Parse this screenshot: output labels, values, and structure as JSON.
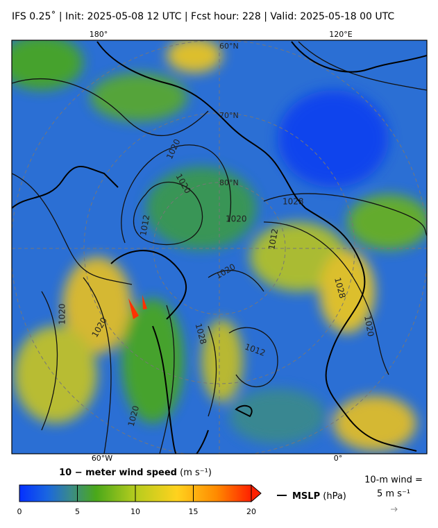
{
  "header": {
    "title": "IFS 0.25˚  |  Init: 2025-05-08 12 UTC  |  Fcst hour: 228  |  Valid: 2025-05-18 00 UTC"
  },
  "map": {
    "lon_labels_top": [
      "180°",
      "120°E"
    ],
    "lon_labels_bottom": [
      "60°W",
      "0°"
    ],
    "lat_labels": [
      "60°N",
      "70°N",
      "80°N"
    ],
    "contour_labels": [
      "1020",
      "1020",
      "1012",
      "1020",
      "1028",
      "1012",
      "1020",
      "1028",
      "1020",
      "1012",
      "1020",
      "1020",
      "1028",
      "1020"
    ]
  },
  "colorbar": {
    "title": "10 − meter wind speed",
    "units": "(m s⁻¹)",
    "range": [
      0,
      20
    ],
    "ticks": [
      0,
      5,
      10,
      15,
      20
    ]
  },
  "legend": {
    "mslp_label": "MSLP",
    "mslp_units": "(hPa)",
    "wind_ref_title": "10-m wind =",
    "wind_ref_value": "5 m s⁻¹"
  }
}
